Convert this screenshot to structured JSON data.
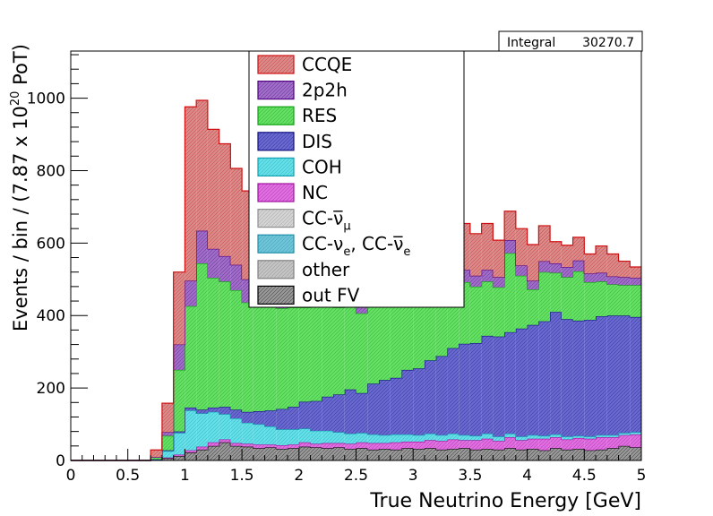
{
  "stats_box": {
    "label": "Integral",
    "value": "30270.7"
  },
  "chart_data": {
    "type": "area",
    "subtype": "stacked-histogram",
    "xlabel": "True Neutrino Energy [GeV]",
    "ylabel": "Events / bin / (7.87 x 10^20 PoT)",
    "ylabel_parts": {
      "main": "Events / bin / (7.87 x 10",
      "exp": "20",
      "tail": " PoT)"
    },
    "xlim": [
      0,
      5
    ],
    "ylim": [
      0,
      1130
    ],
    "bin_width": 0.1,
    "x_ticks": [
      0,
      0.5,
      1,
      1.5,
      2,
      2.5,
      3,
      3.5,
      4,
      4.5,
      5
    ],
    "x_tick_labels": [
      "0",
      "0.5",
      "1",
      "1.5",
      "2",
      "2.5",
      "3",
      "3.5",
      "4",
      "4.5",
      "5"
    ],
    "y_ticks": [
      0,
      200,
      400,
      600,
      800,
      1000
    ],
    "y_tick_labels": [
      "0",
      "200",
      "400",
      "600",
      "800",
      "1000"
    ],
    "grid": false,
    "legend_position": "top-center",
    "legend": [
      {
        "parts": [
          [
            "CCQE",
            ""
          ]
        ],
        "fill": "#d98c8c",
        "stroke": "#d01010"
      },
      {
        "parts": [
          [
            "2p2h",
            ""
          ]
        ],
        "fill": "#a070c8",
        "stroke": "#500080"
      },
      {
        "parts": [
          [
            "RES",
            ""
          ]
        ],
        "fill": "#66e066",
        "stroke": "#10a010"
      },
      {
        "parts": [
          [
            "DIS",
            ""
          ]
        ],
        "fill": "#6a6ad0",
        "stroke": "#101080"
      },
      {
        "parts": [
          [
            "COH",
            ""
          ]
        ],
        "fill": "#66e0e8",
        "stroke": "#10a0b0"
      },
      {
        "parts": [
          [
            "NC",
            ""
          ]
        ],
        "fill": "#e070e0",
        "stroke": "#a010a0"
      },
      {
        "parts": [
          [
            "CC-",
            ""
          ],
          [
            "ν̅",
            ""
          ],
          [
            "μ",
            "sub"
          ]
        ],
        "fill": "#d4d4d4",
        "stroke": "#909090"
      },
      {
        "parts": [
          [
            "CC-",
            ""
          ],
          [
            "ν",
            ""
          ],
          [
            "e",
            "sub"
          ],
          [
            ", CC-",
            ""
          ],
          [
            "ν̅",
            ""
          ],
          [
            "e",
            "sub"
          ]
        ],
        "fill": "#70c4d8",
        "stroke": "#2090a8"
      },
      {
        "parts": [
          [
            "other",
            ""
          ]
        ],
        "fill": "#c4c4c4",
        "stroke": "#808080"
      },
      {
        "parts": [
          [
            "out FV",
            ""
          ]
        ],
        "fill": "#9a9a9a",
        "stroke": "#000000"
      }
    ],
    "stack_order": [
      "out FV",
      "NC",
      "COH",
      "DIS",
      "RES",
      "2p2h",
      "CCQE"
    ],
    "series": [
      {
        "name": "out FV",
        "fill": "#9a9a9a",
        "stroke": "#000000",
        "values": [
          0,
          0,
          0,
          0,
          0,
          0,
          0,
          2,
          6,
          12,
          22,
          30,
          40,
          50,
          40,
          38,
          34,
          36,
          32,
          34,
          38,
          36,
          34,
          36,
          32,
          34,
          30,
          32,
          30,
          34,
          32,
          34,
          30,
          32,
          34,
          30,
          32,
          30,
          34,
          30,
          32,
          28,
          34,
          30,
          32,
          28,
          30,
          34,
          40,
          36
        ]
      },
      {
        "name": "NC",
        "fill": "#e070e0",
        "stroke": "#a010a0",
        "values": [
          0,
          0,
          0,
          0,
          0,
          0,
          0,
          0,
          2,
          4,
          6,
          8,
          10,
          8,
          8,
          8,
          10,
          8,
          10,
          10,
          12,
          10,
          14,
          12,
          14,
          16,
          18,
          16,
          20,
          18,
          20,
          22,
          24,
          26,
          22,
          26,
          28,
          24,
          30,
          26,
          28,
          32,
          30,
          28,
          30,
          32,
          34,
          30,
          30,
          36
        ]
      },
      {
        "name": "COH",
        "fill": "#66e0e8",
        "stroke": "#10a0b0",
        "values": [
          0,
          0,
          0,
          0,
          0,
          0,
          0,
          1,
          18,
          60,
          110,
          92,
          84,
          70,
          68,
          58,
          56,
          50,
          44,
          42,
          38,
          36,
          34,
          30,
          28,
          26,
          24,
          22,
          22,
          20,
          18,
          18,
          16,
          16,
          14,
          12,
          14,
          12,
          10,
          10,
          10,
          8,
          8,
          8,
          6,
          6,
          6,
          6,
          6,
          6
        ]
      },
      {
        "name": "DIS",
        "fill": "#6a6ad0",
        "stroke": "#101080",
        "values": [
          0,
          0,
          0,
          0,
          0,
          0,
          0,
          0,
          2,
          4,
          8,
          10,
          12,
          20,
          24,
          30,
          36,
          44,
          56,
          62,
          74,
          82,
          94,
          104,
          122,
          110,
          140,
          152,
          156,
          178,
          184,
          202,
          218,
          236,
          252,
          256,
          270,
          276,
          280,
          298,
          304,
          316,
          338,
          324,
          318,
          322,
          328,
          330,
          324,
          318
        ]
      },
      {
        "name": "RES",
        "fill": "#66e066",
        "stroke": "#10a010",
        "values": [
          0,
          0,
          0,
          0,
          0,
          0,
          0,
          6,
          40,
          170,
          280,
          404,
          358,
          346,
          330,
          302,
          292,
          290,
          278,
          274,
          260,
          260,
          250,
          240,
          246,
          220,
          226,
          210,
          206,
          200,
          190,
          190,
          168,
          166,
          170,
          156,
          150,
          136,
          218,
          146,
          98,
          136,
          108,
          116,
          136,
          104,
          96,
          86,
          84,
          88
        ]
      },
      {
        "name": "2p2h",
        "fill": "#a070c8",
        "stroke": "#500080",
        "values": [
          0,
          0,
          0,
          0,
          0,
          0,
          0,
          0,
          10,
          70,
          70,
          90,
          80,
          70,
          70,
          64,
          66,
          62,
          62,
          58,
          54,
          50,
          48,
          48,
          44,
          46,
          42,
          42,
          40,
          38,
          36,
          38,
          34,
          32,
          34,
          30,
          32,
          28,
          36,
          28,
          24,
          30,
          26,
          28,
          30,
          24,
          24,
          22,
          22,
          20
        ]
      },
      {
        "name": "CCQE",
        "fill": "#d98c8c",
        "stroke": "#d01010",
        "values": [
          0,
          0,
          0,
          0,
          0,
          0,
          0,
          20,
          80,
          200,
          480,
          360,
          330,
          310,
          266,
          244,
          256,
          222,
          218,
          196,
          192,
          192,
          190,
          176,
          180,
          172,
          162,
          156,
          146,
          146,
          140,
          140,
          132,
          124,
          128,
          116,
          128,
          102,
          80,
          102,
          100,
          98,
          60,
          60,
          64,
          54,
          74,
          62,
          44,
          30
        ]
      }
    ]
  }
}
